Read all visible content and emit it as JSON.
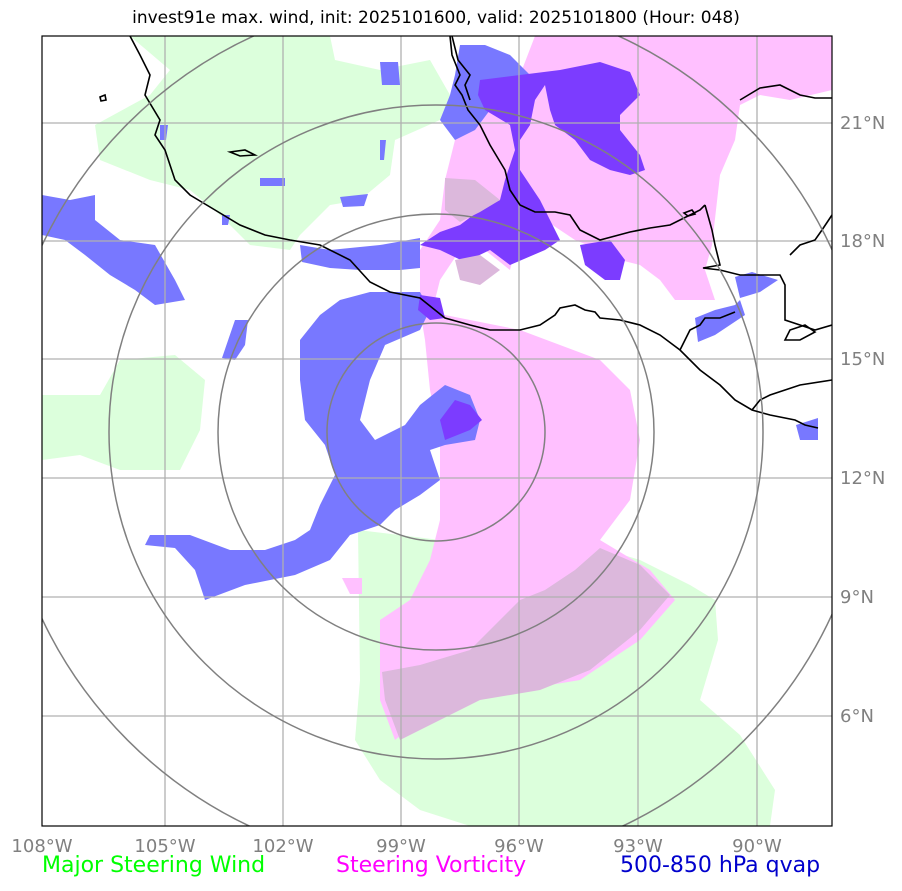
{
  "title": "invest91e max. wind, init: 2025101600, valid: 2025101800 (Hour: 048)",
  "axes": {
    "lon_ticks": [
      "108°W",
      "105°W",
      "102°W",
      "99°W",
      "96°W",
      "93°W",
      "90°W"
    ],
    "lat_ticks": [
      "21°N",
      "18°N",
      "15°N",
      "12°N",
      "9°N",
      "6°N"
    ]
  },
  "legend": [
    {
      "label": "Major Steering Wind",
      "color": "#00ff00"
    },
    {
      "label": "Steering Vorticity",
      "color": "#ff00ff"
    },
    {
      "label": "500-850 hPa qvap",
      "color": "#0000cc"
    }
  ],
  "colors": {
    "steering_wind_fill": "#dcffdc",
    "vorticity_fill": "#ffc0ff",
    "qvap_fill": "#7878ff",
    "overlap_fill": "#7c3cff",
    "range_ring": "#808080",
    "coastline": "#000000",
    "gridline": "#b0b0b0"
  }
}
